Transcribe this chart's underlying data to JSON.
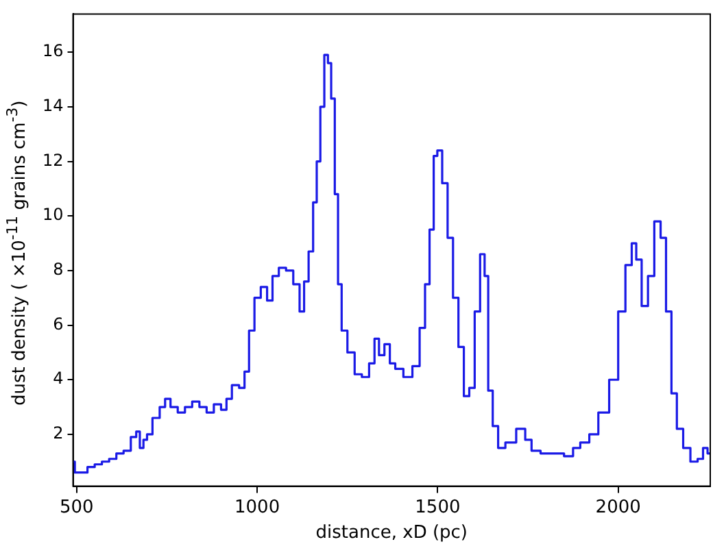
{
  "chart_data": {
    "type": "step",
    "xlabel": "distance, xD (pc)",
    "ylabel": "dust density ( ×10$^{-11}$ grains cm$^{-3}$)",
    "xlim": [
      490,
      2255
    ],
    "xticks": [
      500,
      1000,
      1500,
      2000
    ],
    "ylim": [
      0.1,
      17.4
    ],
    "yticks": [
      2,
      4,
      6,
      8,
      10,
      12,
      14,
      16
    ],
    "grid": false,
    "legend": false,
    "series": [
      {
        "color": "#1a1ae6",
        "x": [
          490,
          500,
          520,
          540,
          560,
          580,
          600,
          620,
          640,
          660,
          670,
          680,
          690,
          700,
          720,
          740,
          750,
          770,
          790,
          810,
          830,
          850,
          870,
          890,
          910,
          920,
          940,
          960,
          970,
          985,
          1000,
          1020,
          1035,
          1050,
          1070,
          1090,
          1110,
          1125,
          1135,
          1150,
          1160,
          1170,
          1180,
          1192,
          1200,
          1210,
          1220,
          1228,
          1240,
          1260,
          1280,
          1300,
          1320,
          1330,
          1345,
          1360,
          1375,
          1390,
          1420,
          1440,
          1460,
          1470,
          1485,
          1493,
          1505,
          1520,
          1535,
          1550,
          1565,
          1580,
          1595,
          1610,
          1625,
          1635,
          1645,
          1660,
          1675,
          1700,
          1735,
          1750,
          1770,
          1800,
          1830,
          1870,
          1880,
          1910,
          1930,
          1960,
          1990,
          2010,
          2030,
          2045,
          2055,
          2075,
          2090,
          2110,
          2125,
          2140,
          2155,
          2170,
          2190,
          2210,
          2230,
          2240,
          2255
        ],
        "values": [
          1.0,
          0.6,
          0.6,
          0.8,
          0.9,
          1.0,
          1.1,
          1.3,
          1.4,
          1.9,
          2.1,
          1.5,
          1.8,
          2.0,
          2.6,
          3.0,
          3.3,
          3.0,
          2.8,
          3.0,
          3.2,
          3.0,
          2.8,
          3.1,
          2.9,
          3.3,
          3.8,
          3.7,
          4.3,
          5.8,
          7.0,
          7.4,
          6.9,
          7.8,
          8.1,
          8.0,
          7.5,
          6.5,
          7.6,
          8.7,
          10.5,
          12.0,
          14.0,
          15.9,
          15.6,
          14.3,
          10.8,
          7.5,
          5.8,
          5.0,
          4.2,
          4.1,
          4.6,
          5.5,
          4.9,
          5.3,
          4.6,
          4.4,
          4.1,
          4.5,
          5.9,
          7.5,
          9.5,
          12.2,
          12.4,
          11.2,
          9.2,
          7.0,
          5.2,
          3.4,
          3.7,
          6.5,
          8.6,
          7.8,
          3.6,
          2.3,
          1.5,
          1.7,
          2.2,
          1.8,
          1.4,
          1.3,
          1.3,
          1.2,
          1.5,
          1.7,
          2.0,
          2.8,
          4.0,
          6.5,
          8.2,
          9.0,
          8.4,
          6.7,
          7.8,
          9.8,
          9.2,
          6.5,
          3.5,
          2.2,
          1.5,
          1.0,
          1.1,
          1.5,
          1.3
        ]
      }
    ]
  }
}
